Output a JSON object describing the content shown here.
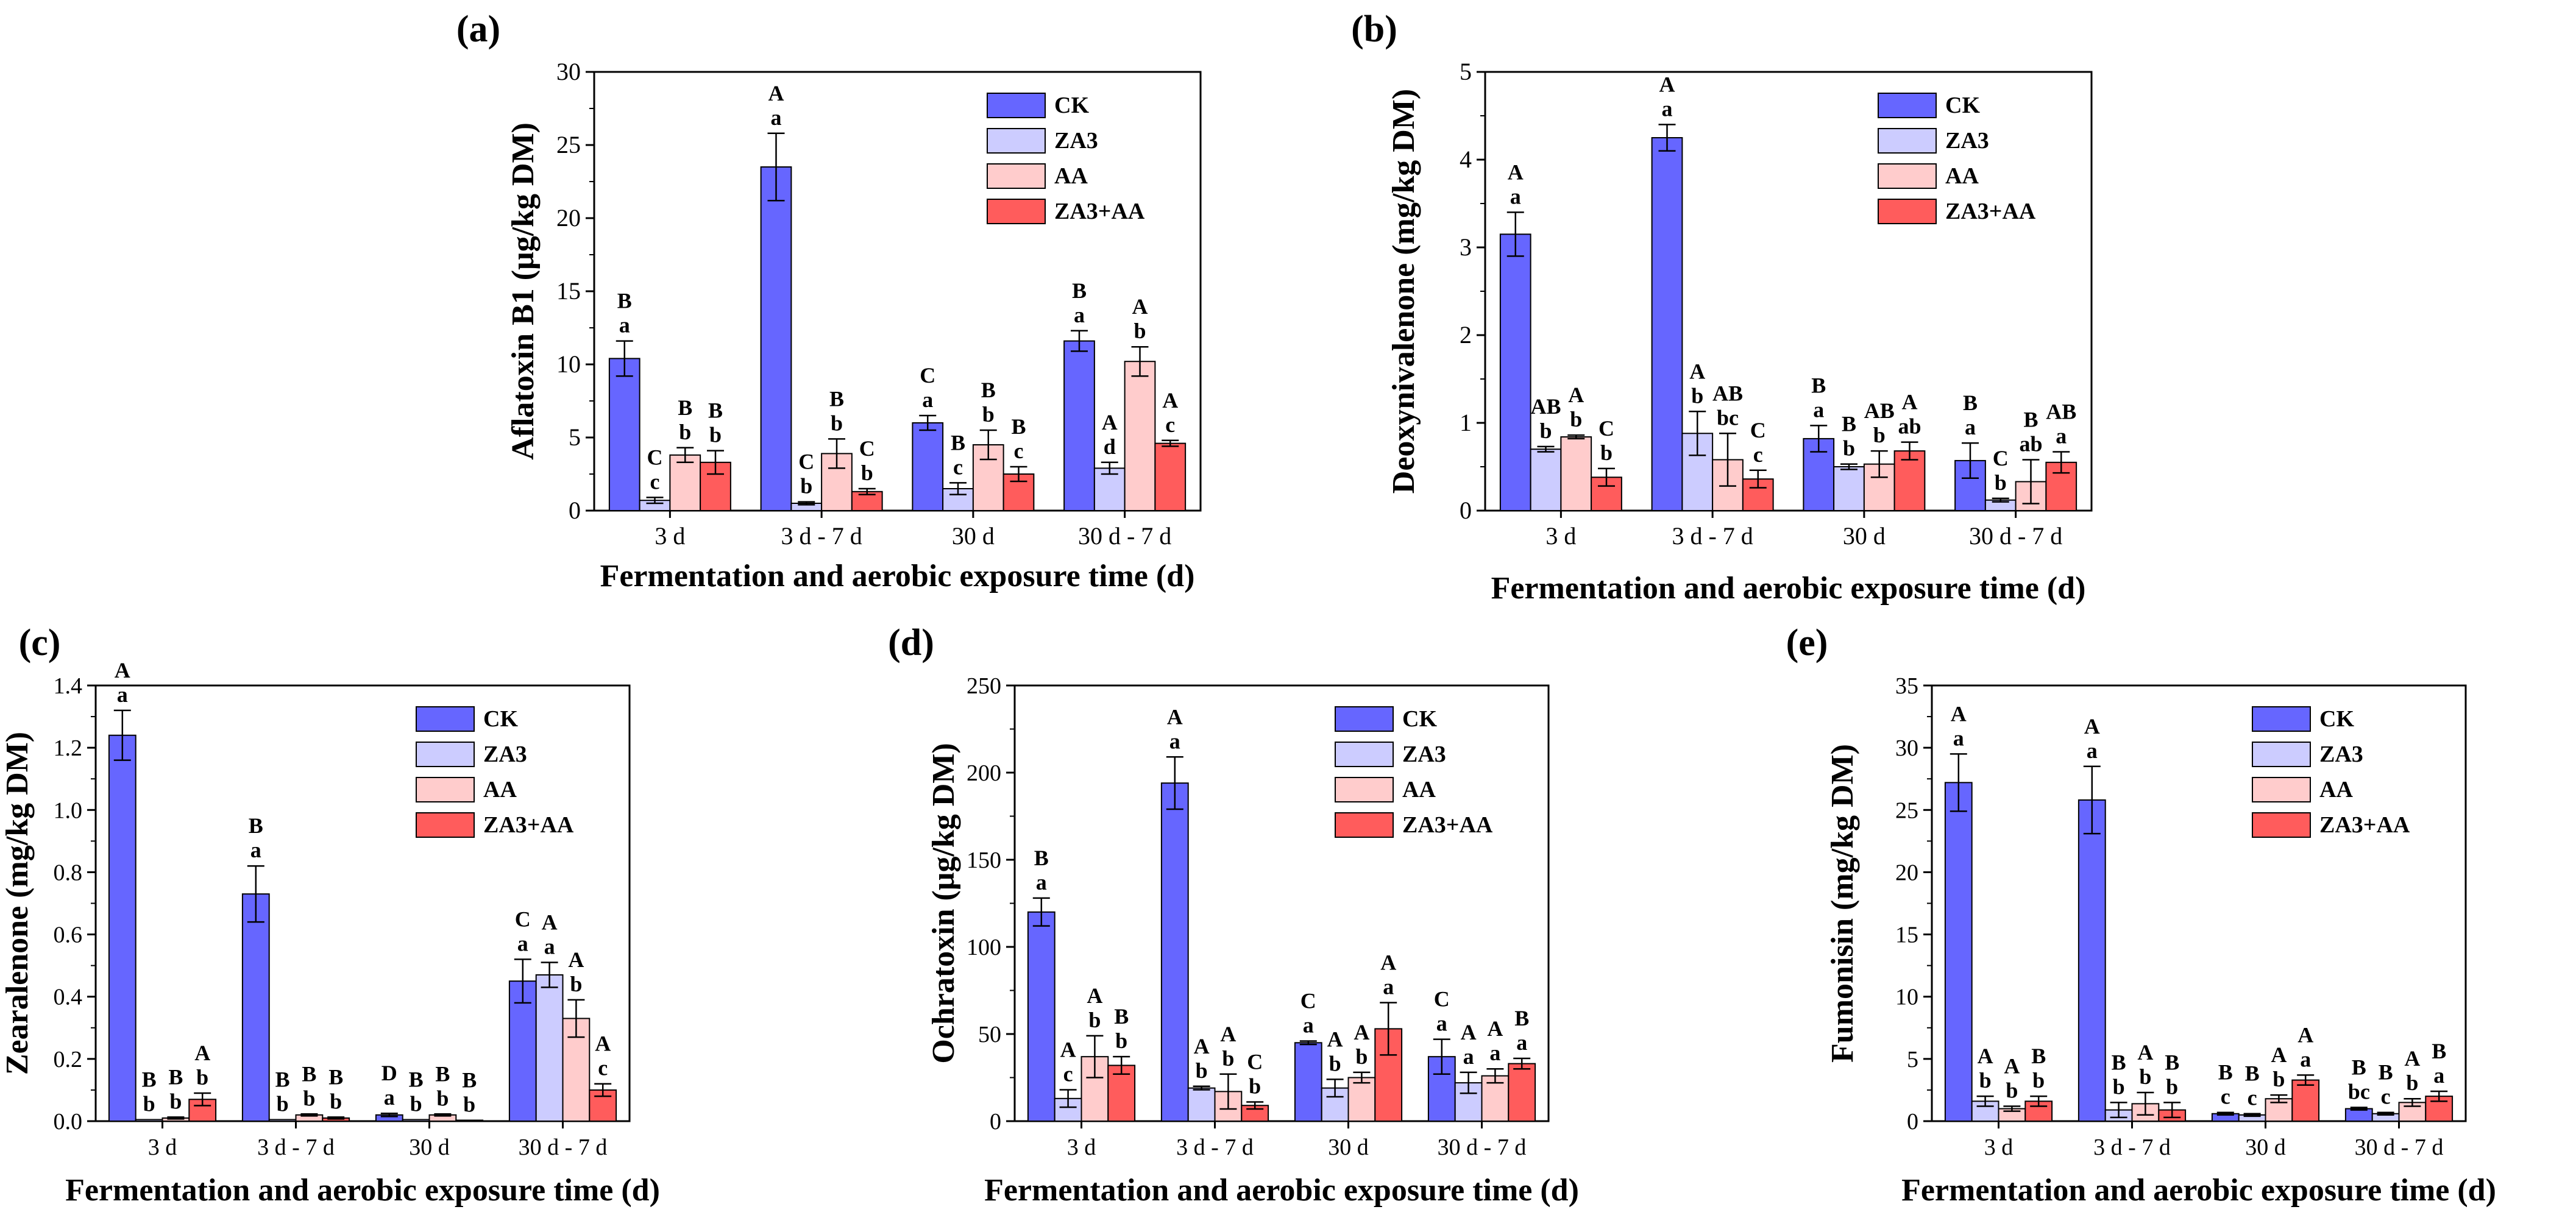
{
  "figure": {
    "xlabel": "Fermentation and aerobic exposure time (d)"
  },
  "legend": [
    "CK",
    "ZA3",
    "AA",
    "ZA3+AA"
  ],
  "colors": {
    "CK": "#6666ff",
    "ZA3": "#ccccff",
    "AA": "#ffcccc",
    "ZA3+AA": "#ff5c5c"
  },
  "chart_data": [
    {
      "type": "bar",
      "panel": "(a)",
      "ylabel": "Aflatoxin B1 (μg/kg DM)",
      "xlabel": "Fermentation and aerobic exposure time (d)",
      "categories": [
        "3 d",
        "3 d - 7 d",
        "30 d",
        "30 d - 7 d"
      ],
      "ylim": [
        0,
        30
      ],
      "yticks": [
        0,
        5,
        10,
        15,
        20,
        25,
        30
      ],
      "series": [
        {
          "name": "CK",
          "values": [
            10.4,
            23.5,
            6.0,
            11.6
          ],
          "errors": [
            1.2,
            2.3,
            0.5,
            0.7
          ],
          "upper": [
            "B",
            "A",
            "C",
            "B"
          ],
          "lower": [
            "a",
            "a",
            "a",
            "a"
          ]
        },
        {
          "name": "ZA3",
          "values": [
            0.7,
            0.5,
            1.5,
            2.9
          ],
          "errors": [
            0.2,
            0.1,
            0.4,
            0.4
          ],
          "upper": [
            "C",
            "C",
            "B",
            "A"
          ],
          "lower": [
            "c",
            "b",
            "c",
            "d"
          ]
        },
        {
          "name": "AA",
          "values": [
            3.8,
            3.9,
            4.5,
            10.2
          ],
          "errors": [
            0.5,
            1.0,
            1.0,
            1.0
          ],
          "upper": [
            "B",
            "B",
            "B",
            "A"
          ],
          "lower": [
            "b",
            "b",
            "b",
            "b"
          ]
        },
        {
          "name": "ZA3+AA",
          "values": [
            3.3,
            1.3,
            2.5,
            4.6
          ],
          "errors": [
            0.8,
            0.2,
            0.5,
            0.2
          ],
          "upper": [
            "B",
            "C",
            "B",
            "A"
          ],
          "lower": [
            "b",
            "b",
            "c",
            "c"
          ]
        }
      ]
    },
    {
      "type": "bar",
      "panel": "(b)",
      "ylabel": "Deoxynivalenone (mg/kg DM)",
      "xlabel": "Fermentation and aerobic exposure time (d)",
      "categories": [
        "3 d",
        "3 d - 7 d",
        "30 d",
        "30 d - 7 d"
      ],
      "ylim": [
        0,
        5
      ],
      "yticks": [
        0,
        1,
        2,
        3,
        4,
        5
      ],
      "series": [
        {
          "name": "CK",
          "values": [
            3.15,
            4.25,
            0.82,
            0.57
          ],
          "errors": [
            0.25,
            0.15,
            0.15,
            0.2
          ],
          "upper": [
            "A",
            "A",
            "B",
            "B"
          ],
          "lower": [
            "a",
            "a",
            "a",
            "a"
          ]
        },
        {
          "name": "ZA3",
          "values": [
            0.7,
            0.88,
            0.5,
            0.12
          ],
          "errors": [
            0.03,
            0.25,
            0.03,
            0.02
          ],
          "upper": [
            "AB",
            "A",
            "B",
            "C"
          ],
          "lower": [
            "b",
            "b",
            "b",
            "b"
          ]
        },
        {
          "name": "AA",
          "values": [
            0.84,
            0.58,
            0.53,
            0.33
          ],
          "errors": [
            0.02,
            0.3,
            0.15,
            0.25
          ],
          "upper": [
            "A",
            "AB",
            "AB",
            "B"
          ],
          "lower": [
            "b",
            "bc",
            "b",
            "ab"
          ]
        },
        {
          "name": "ZA3+AA",
          "values": [
            0.38,
            0.36,
            0.68,
            0.55
          ],
          "errors": [
            0.1,
            0.1,
            0.1,
            0.12
          ],
          "upper": [
            "C",
            "C",
            "A",
            "AB"
          ],
          "lower": [
            "b",
            "c",
            "ab",
            "a"
          ]
        }
      ]
    },
    {
      "type": "bar",
      "panel": "(c)",
      "ylabel": "Zearalenone (mg/kg DM)",
      "xlabel": "Fermentation and aerobic exposure time (d)",
      "categories": [
        "3 d",
        "3 d - 7 d",
        "30 d",
        "30 d - 7 d"
      ],
      "ylim": [
        0,
        1.4
      ],
      "yticks": [
        "0.0",
        "0.2",
        "0.4",
        "0.6",
        "0.8",
        "1.0",
        "1.2",
        "1.4"
      ],
      "series": [
        {
          "name": "CK",
          "values": [
            1.24,
            0.73,
            0.02,
            0.45
          ],
          "errors": [
            0.08,
            0.09,
            0.005,
            0.07
          ],
          "upper": [
            "A",
            "B",
            "D",
            "C"
          ],
          "lower": [
            "a",
            "a",
            "a",
            "a"
          ]
        },
        {
          "name": "ZA3",
          "values": [
            0.005,
            0.005,
            0.005,
            0.47
          ],
          "errors": [
            0,
            0,
            0,
            0.04
          ],
          "upper": [
            "B",
            "B",
            "B",
            "A"
          ],
          "lower": [
            "b",
            "b",
            "b",
            "a"
          ]
        },
        {
          "name": "AA",
          "values": [
            0.01,
            0.02,
            0.02,
            0.33
          ],
          "errors": [
            0.003,
            0.003,
            0.003,
            0.06
          ],
          "upper": [
            "B",
            "B",
            "B",
            "A"
          ],
          "lower": [
            "b",
            "b",
            "b",
            "b"
          ]
        },
        {
          "name": "ZA3+AA",
          "values": [
            0.07,
            0.01,
            0.003,
            0.1
          ],
          "errors": [
            0.02,
            0.003,
            0,
            0.02
          ],
          "upper": [
            "A",
            "B",
            "B",
            "A"
          ],
          "lower": [
            "b",
            "b",
            "b",
            "c"
          ]
        }
      ]
    },
    {
      "type": "bar",
      "panel": "(d)",
      "ylabel": "Ochratoxin (μg/kg DM)",
      "xlabel": "Fermentation and aerobic exposure time (d)",
      "categories": [
        "3 d",
        "3 d - 7 d",
        "30 d",
        "30 d - 7 d"
      ],
      "ylim": [
        0,
        250
      ],
      "yticks": [
        0,
        50,
        100,
        150,
        200,
        250
      ],
      "series": [
        {
          "name": "CK",
          "values": [
            120,
            194,
            45,
            37
          ],
          "errors": [
            8,
            15,
            1,
            10
          ],
          "upper": [
            "B",
            "A",
            "C",
            "C"
          ],
          "lower": [
            "a",
            "a",
            "a",
            "a"
          ]
        },
        {
          "name": "ZA3",
          "values": [
            13,
            19,
            19,
            22
          ],
          "errors": [
            5,
            1,
            5,
            6
          ],
          "upper": [
            "A",
            "A",
            "A",
            "A"
          ],
          "lower": [
            "c",
            "b",
            "b",
            "a"
          ]
        },
        {
          "name": "AA",
          "values": [
            37,
            17,
            25,
            26
          ],
          "errors": [
            12,
            10,
            3,
            4
          ],
          "upper": [
            "A",
            "A",
            "A",
            "A"
          ],
          "lower": [
            "b",
            "b",
            "b",
            "a"
          ]
        },
        {
          "name": "ZA3+AA",
          "values": [
            32,
            9,
            53,
            33
          ],
          "errors": [
            5,
            2,
            15,
            3
          ],
          "upper": [
            "B",
            "C",
            "A",
            "B"
          ],
          "lower": [
            "b",
            "b",
            "a",
            "a"
          ]
        }
      ]
    },
    {
      "type": "bar",
      "panel": "(e)",
      "ylabel": "Fumonisin (mg/kg DM)",
      "xlabel": "Fermentation and aerobic exposure time (d)",
      "categories": [
        "3 d",
        "3 d - 7 d",
        "30 d",
        "30 d - 7 d"
      ],
      "ylim": [
        0,
        35
      ],
      "yticks": [
        0,
        5,
        10,
        15,
        20,
        25,
        30,
        35
      ],
      "series": [
        {
          "name": "CK",
          "values": [
            27.2,
            25.8,
            0.6,
            1.0
          ],
          "errors": [
            2.3,
            2.7,
            0.1,
            0.1
          ],
          "upper": [
            "A",
            "A",
            "B",
            "B"
          ],
          "lower": [
            "a",
            "a",
            "c",
            "bc"
          ]
        },
        {
          "name": "ZA3",
          "values": [
            1.6,
            0.9,
            0.5,
            0.6
          ],
          "errors": [
            0.4,
            0.6,
            0.1,
            0.1
          ],
          "upper": [
            "A",
            "B",
            "B",
            "B"
          ],
          "lower": [
            "b",
            "b",
            "c",
            "c"
          ]
        },
        {
          "name": "AA",
          "values": [
            1.0,
            1.4,
            1.8,
            1.5
          ],
          "errors": [
            0.2,
            0.9,
            0.3,
            0.3
          ],
          "upper": [
            "A",
            "A",
            "A",
            "A"
          ],
          "lower": [
            "b",
            "b",
            "b",
            "b"
          ]
        },
        {
          "name": "ZA3+AA",
          "values": [
            1.6,
            0.9,
            3.3,
            2.0
          ],
          "errors": [
            0.4,
            0.6,
            0.4,
            0.4
          ],
          "upper": [
            "B",
            "B",
            "A",
            "B"
          ],
          "lower": [
            "b",
            "b",
            "a",
            "a"
          ]
        }
      ]
    }
  ]
}
